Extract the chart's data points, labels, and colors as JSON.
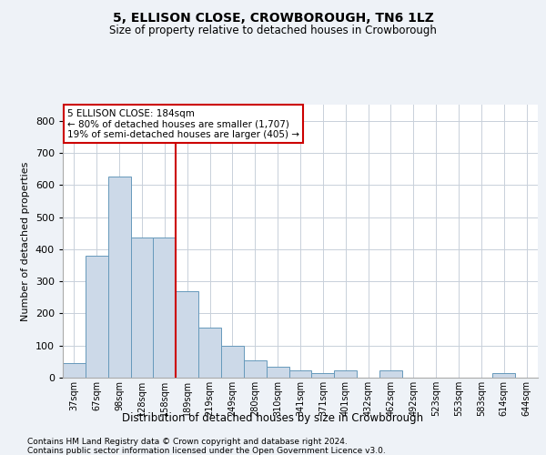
{
  "title": "5, ELLISON CLOSE, CROWBOROUGH, TN6 1LZ",
  "subtitle": "Size of property relative to detached houses in Crowborough",
  "xlabel": "Distribution of detached houses by size in Crowborough",
  "ylabel": "Number of detached properties",
  "footnote1": "Contains HM Land Registry data © Crown copyright and database right 2024.",
  "footnote2": "Contains public sector information licensed under the Open Government Licence v3.0.",
  "annotation_line1": "5 ELLISON CLOSE: 184sqm",
  "annotation_line2": "← 80% of detached houses are smaller (1,707)",
  "annotation_line3": "19% of semi-detached houses are larger (405) →",
  "bar_color": "#ccd9e8",
  "bar_edge_color": "#6699bb",
  "vline_color": "#cc0000",
  "vline_x": 4.5,
  "ylim": [
    0,
    850
  ],
  "yticks": [
    0,
    100,
    200,
    300,
    400,
    500,
    600,
    700,
    800
  ],
  "categories": [
    "37sqm",
    "67sqm",
    "98sqm",
    "128sqm",
    "158sqm",
    "189sqm",
    "219sqm",
    "249sqm",
    "280sqm",
    "310sqm",
    "341sqm",
    "371sqm",
    "401sqm",
    "432sqm",
    "462sqm",
    "492sqm",
    "523sqm",
    "553sqm",
    "583sqm",
    "614sqm",
    "644sqm"
  ],
  "values": [
    45,
    380,
    625,
    435,
    435,
    270,
    155,
    100,
    55,
    35,
    22,
    15,
    22,
    0,
    22,
    0,
    0,
    0,
    0,
    15,
    0
  ],
  "background_color": "#eef2f7",
  "plot_bg_color": "#ffffff",
  "grid_color": "#c8d0da"
}
